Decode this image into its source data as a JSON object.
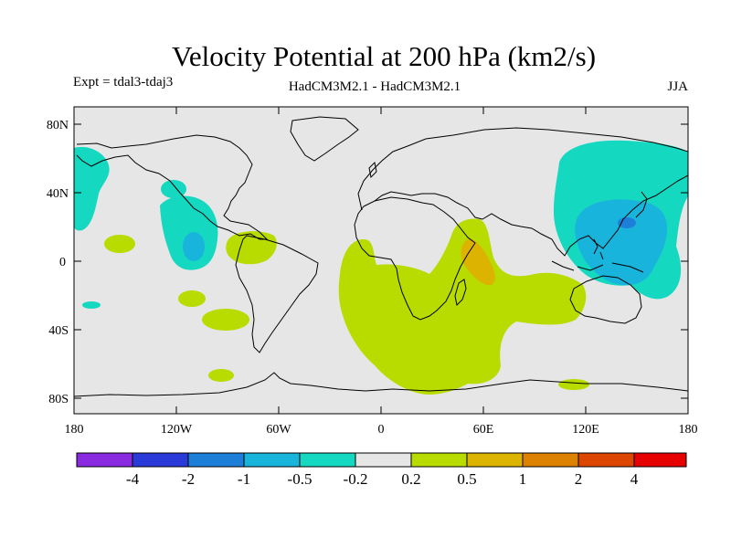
{
  "title": "Velocity Potential at 200 hPa (km2/s)",
  "experiment_label": "Expt = tdal3-tdaj3",
  "model_label": "HadCM3M2.1 - HadCM3M2.1",
  "season_label": "JJA",
  "axes": {
    "lat_ticks": [
      "80N",
      "40N",
      "0",
      "40S",
      "80S"
    ],
    "lon_ticks": [
      "180",
      "120W",
      "60W",
      "0",
      "60E",
      "120E",
      "180"
    ]
  },
  "colorbar": {
    "colors": [
      "#8a2be2",
      "#2a3ad8",
      "#1e7fd8",
      "#19b4dc",
      "#14d8c0",
      "#e6e6e6",
      "#b8dc00",
      "#dcb400",
      "#dc8200",
      "#dc4600",
      "#e60000"
    ],
    "labels": [
      "-4",
      "-2",
      "-1",
      "-0.5",
      "-0.2",
      "0.2",
      "0.5",
      "1",
      "2",
      "4"
    ]
  },
  "map": {
    "background_color": "#e6e6e6",
    "regions": [
      {
        "name": "west-pacific-negative-region",
        "level": "-0.2 to -0.5"
      },
      {
        "name": "west-pacific-core-region",
        "level": "-0.5 to -1"
      },
      {
        "name": "east-pacific-negative-region",
        "level": "-0.2 to -0.5"
      },
      {
        "name": "africa-positive-region",
        "level": "0.2 to 0.5"
      },
      {
        "name": "east-africa-core-region",
        "level": "0.5 to 1"
      }
    ]
  }
}
